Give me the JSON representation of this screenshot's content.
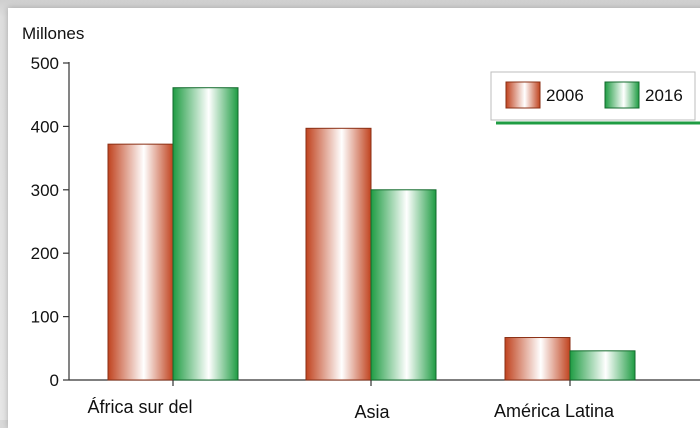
{
  "chart_data": {
    "type": "bar",
    "unit_label": "Millones",
    "categories": [
      "África  sur del",
      "Asia",
      "América Latina"
    ],
    "series": [
      {
        "name": "2006",
        "values": [
          372,
          397,
          67
        ],
        "color": "#c8502a"
      },
      {
        "name": "2016",
        "values": [
          461,
          300,
          46
        ],
        "color": "#1f9c43"
      }
    ],
    "yticks": [
      0,
      100,
      200,
      300,
      400,
      500
    ],
    "ylim": [
      0,
      500
    ],
    "legend_position": "top-right",
    "grid": false
  }
}
